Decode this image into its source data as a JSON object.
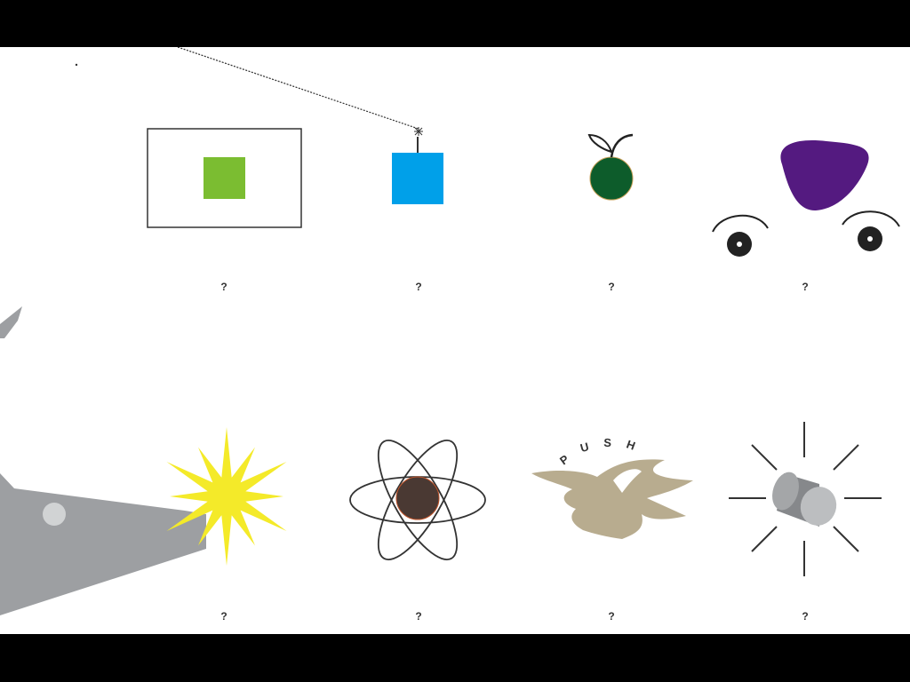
{
  "game": {
    "tiles": [
      {
        "id": "framed-square",
        "label": "?",
        "shape": "green square inside frame",
        "color": "#7bbd31"
      },
      {
        "id": "bomb",
        "label": "?",
        "shape": "blue box with lit fuse",
        "color": "#00a0e9"
      },
      {
        "id": "apple",
        "label": "?",
        "shape": "green apple",
        "color": "#0d5c2b"
      },
      {
        "id": "face",
        "label": "?",
        "shape": "purple blob with eyebrows and eyes",
        "color": "#541a80"
      },
      {
        "id": "starburst",
        "label": "?",
        "shape": "yellow explosion",
        "color": "#f4ea29"
      },
      {
        "id": "atom",
        "label": "?",
        "shape": "atom with nucleus",
        "color": "#4a3933"
      },
      {
        "id": "push-splat",
        "label": "?",
        "shape": "splat under curved word",
        "color": "#b8ac8f"
      },
      {
        "id": "button",
        "label": "?",
        "shape": "grey cylinder with rays",
        "color": "#a4a6a8"
      }
    ],
    "push_text": "PUSH",
    "cannon_color": "#9d9fa2"
  }
}
